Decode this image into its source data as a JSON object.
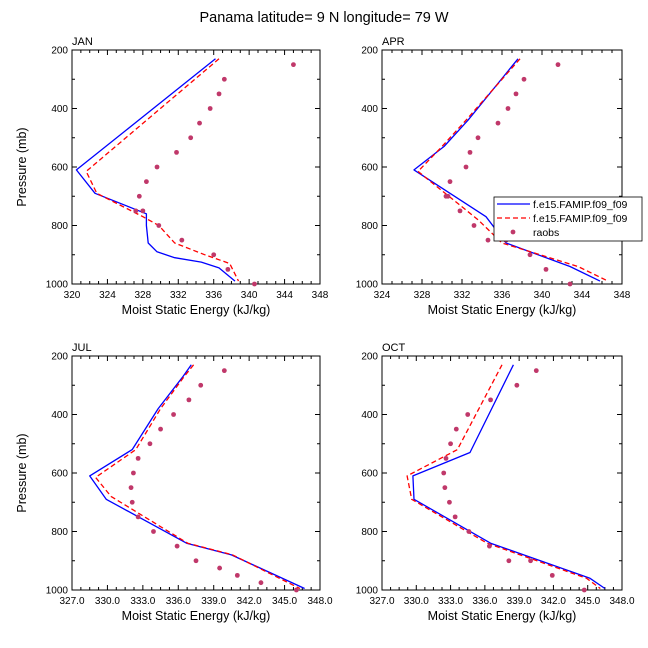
{
  "title": "Panama  latitude= 9 N longitude= 79 W",
  "colors": {
    "model1": "#0000ff",
    "model2": "#ff0000",
    "raobs": "#c0386a",
    "axis": "#000000"
  },
  "legend": {
    "entries": [
      {
        "label": "f.e15.FAMIP.f09_f09",
        "style": "solid-line",
        "color": "#0000ff"
      },
      {
        "label": "f.e15.FAMIP.f09_f09",
        "style": "dashed-line",
        "color": "#ff0000"
      },
      {
        "label": "raobs",
        "style": "marker",
        "color": "#c0386a"
      }
    ]
  },
  "chart_data": [
    {
      "type": "line",
      "panel": "JAN",
      "xlabel": "Moist Static Energy (kJ/kg)",
      "ylabel": "Pressure (mb)",
      "xlim": [
        320,
        348
      ],
      "ylim": [
        200,
        1000
      ],
      "y_inverted": true,
      "xticks": [
        320,
        324,
        328,
        332,
        336,
        340,
        344,
        348
      ],
      "xtick_labels": [
        "320",
        "324",
        "328",
        "332",
        "336",
        "340",
        "344",
        "348"
      ],
      "yticks": [
        200,
        400,
        600,
        800,
        1000
      ],
      "series": [
        {
          "name": "f.e15.FAMIP.f09_f09",
          "style": "solid",
          "color": "#0000ff",
          "x": [
            336.2,
            320.5,
            322.6,
            328.4,
            328.4,
            328.6,
            329.6,
            331.6,
            334.6,
            336.6,
            338.4
          ],
          "y": [
            230,
            610,
            690,
            760,
            800,
            860,
            890,
            910,
            925,
            945,
            990
          ]
        },
        {
          "name": "f.e15.FAMIP.f09_f09",
          "style": "dashed",
          "color": "#ff0000",
          "x": [
            336.6,
            321.6,
            322.8,
            328.0,
            329.8,
            331.6,
            335.0,
            337.8,
            338.8
          ],
          "y": [
            230,
            615,
            690,
            770,
            800,
            860,
            900,
            930,
            990
          ]
        },
        {
          "name": "raobs",
          "style": "marker",
          "color": "#c0386a",
          "x": [
            345.0,
            337.2,
            336.6,
            335.6,
            334.4,
            333.4,
            331.8,
            329.6,
            328.4,
            327.6,
            327.2,
            328.0,
            329.8,
            332.4,
            336.0,
            337.6,
            340.6
          ],
          "y": [
            250,
            300,
            350,
            400,
            450,
            500,
            550,
            600,
            650,
            700,
            750,
            750,
            800,
            850,
            900,
            950,
            1000
          ]
        }
      ]
    },
    {
      "type": "line",
      "panel": "APR",
      "xlabel": "Moist Static Energy (kJ/kg)",
      "ylabel": "",
      "xlim": [
        324,
        348
      ],
      "ylim": [
        200,
        1000
      ],
      "y_inverted": true,
      "xticks": [
        324,
        328,
        332,
        336,
        340,
        344,
        348
      ],
      "xtick_labels": [
        "324",
        "328",
        "332",
        "336",
        "340",
        "344",
        "348"
      ],
      "yticks": [
        200,
        400,
        600,
        800,
        1000
      ],
      "series": [
        {
          "name": "f.e15.FAMIP.f09_f09",
          "style": "solid",
          "color": "#0000ff",
          "x": [
            337.6,
            332.6,
            330.2,
            327.2,
            334.4,
            336.4,
            342.8,
            345.8
          ],
          "y": [
            230,
            440,
            530,
            610,
            770,
            860,
            940,
            990
          ]
        },
        {
          "name": "f.e15.FAMIP.f09_f09",
          "style": "dashed",
          "color": "#ff0000",
          "x": [
            337.8,
            332.4,
            330.0,
            327.6,
            333.6,
            336.0,
            343.6,
            346.6
          ],
          "y": [
            230,
            440,
            530,
            615,
            780,
            860,
            940,
            990
          ]
        },
        {
          "name": "raobs",
          "style": "marker",
          "color": "#c0386a",
          "x": [
            341.6,
            338.2,
            337.4,
            336.6,
            335.6,
            333.6,
            332.8,
            332.4,
            330.8,
            330.4,
            330.6,
            331.8,
            333.2,
            334.6,
            336.4,
            338.8,
            340.4,
            342.8
          ],
          "y": [
            250,
            300,
            350,
            400,
            450,
            500,
            550,
            600,
            650,
            700,
            700,
            750,
            800,
            850,
            850,
            900,
            950,
            1000
          ]
        }
      ]
    },
    {
      "type": "line",
      "panel": "JUL",
      "xlabel": "Moist Static Energy (kJ/kg)",
      "ylabel": "Pressure (mb)",
      "xlim": [
        327,
        348
      ],
      "ylim": [
        200,
        1000
      ],
      "y_inverted": true,
      "xticks": [
        327,
        330,
        333,
        336,
        339,
        342,
        345,
        348
      ],
      "xtick_labels": [
        "327.0",
        "330.0",
        "333.0",
        "336.0",
        "339.0",
        "342.0",
        "345.0",
        "348.0"
      ],
      "yticks": [
        200,
        400,
        600,
        800,
        1000
      ],
      "series": [
        {
          "name": "f.e15.FAMIP.f09_f09",
          "style": "solid",
          "color": "#0000ff",
          "x": [
            337.1,
            336.4,
            334.3,
            332.1,
            328.5,
            329.9,
            336.7,
            340.5,
            346.7
          ],
          "y": [
            230,
            270,
            380,
            520,
            610,
            690,
            840,
            880,
            995
          ]
        },
        {
          "name": "f.e15.FAMIP.f09_f09",
          "style": "dashed",
          "color": "#ff0000",
          "x": [
            337.3,
            336.5,
            334.5,
            332.4,
            329.0,
            330.3,
            336.8,
            340.6,
            346.3
          ],
          "y": [
            230,
            270,
            380,
            520,
            615,
            680,
            840,
            880,
            995
          ]
        },
        {
          "name": "raobs",
          "style": "marker",
          "color": "#c0386a",
          "x": [
            339.9,
            337.9,
            336.9,
            335.6,
            334.5,
            333.6,
            332.6,
            332.2,
            332.0,
            332.1,
            332.6,
            333.9,
            335.9,
            337.5,
            339.5,
            341.0,
            343.0,
            346.0
          ],
          "y": [
            250,
            300,
            350,
            400,
            450,
            500,
            550,
            600,
            650,
            700,
            750,
            800,
            850,
            900,
            925,
            950,
            975,
            1000
          ]
        }
      ]
    },
    {
      "type": "line",
      "panel": "OCT",
      "xlabel": "Moist Static Energy (kJ/kg)",
      "ylabel": "",
      "xlim": [
        327,
        348
      ],
      "ylim": [
        200,
        1000
      ],
      "y_inverted": true,
      "xticks": [
        327,
        330,
        333,
        336,
        339,
        342,
        345,
        348
      ],
      "xtick_labels": [
        "327.0",
        "330.0",
        "333.0",
        "336.0",
        "339.0",
        "342.0",
        "345.0",
        "348.0"
      ],
      "yticks": [
        200,
        400,
        600,
        800,
        1000
      ],
      "series": [
        {
          "name": "f.e15.FAMIP.f09_f09",
          "style": "solid",
          "color": "#0000ff",
          "x": [
            338.5,
            334.7,
            329.7,
            329.8,
            336.5,
            345.2,
            346.5
          ],
          "y": [
            230,
            530,
            610,
            690,
            840,
            960,
            995
          ]
        },
        {
          "name": "f.e15.FAMIP.f09_f09",
          "style": "dashed",
          "color": "#ff0000",
          "x": [
            337.5,
            333.6,
            329.2,
            329.6,
            336.2,
            344.9,
            346.1
          ],
          "y": [
            230,
            520,
            610,
            690,
            840,
            960,
            995
          ]
        },
        {
          "name": "raobs",
          "style": "marker",
          "color": "#c0386a",
          "x": [
            340.5,
            338.8,
            336.5,
            334.5,
            333.5,
            333.0,
            332.6,
            332.4,
            332.5,
            332.9,
            333.4,
            334.6,
            336.4,
            338.1,
            340.0,
            341.9,
            344.7
          ],
          "y": [
            250,
            300,
            350,
            400,
            450,
            500,
            550,
            600,
            650,
            700,
            750,
            800,
            850,
            900,
            900,
            950,
            1000
          ]
        }
      ]
    }
  ]
}
